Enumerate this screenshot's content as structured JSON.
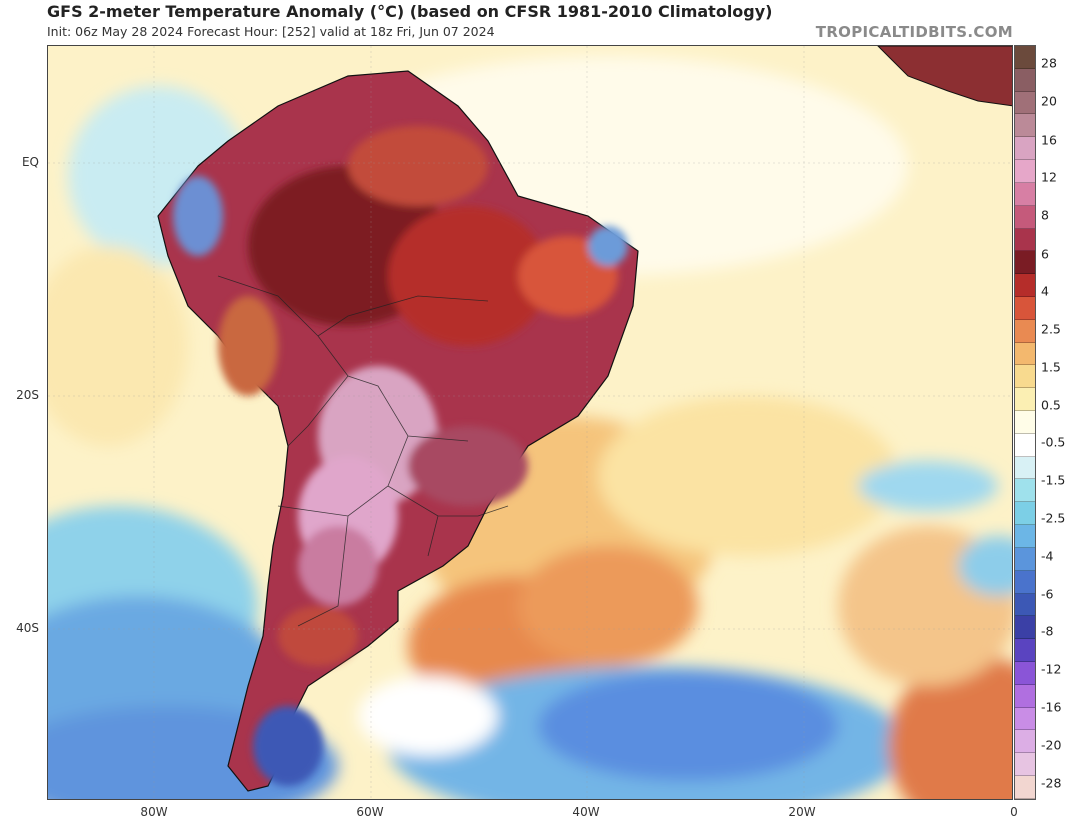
{
  "header": {
    "title": "GFS 2-meter Temperature Anomaly (°C) (based on CFSR 1981-2010 Climatology)",
    "subtitle": "Init: 06z May 28 2024   Forecast Hour: [252]   valid at 18z Fri, Jun 07 2024",
    "watermark": "TROPICALTIDBITS.COM"
  },
  "map": {
    "lat_labels": [
      "EQ",
      "20S",
      "40S"
    ],
    "lon_labels": [
      "80W",
      "60W",
      "40W",
      "20W",
      "0"
    ]
  },
  "colorbar": {
    "labels": [
      "28",
      "20",
      "16",
      "12",
      "8",
      "6",
      "4",
      "2.5",
      "1.5",
      "0.5",
      "-0.5",
      "-1.5",
      "-2.5",
      "-4",
      "-6",
      "-8",
      "-12",
      "-16",
      "-20",
      "-28"
    ],
    "colors": [
      "#6b4a3c",
      "#8a5e63",
      "#a07078",
      "#bb8a98",
      "#d9a4c2",
      "#e6a7c9",
      "#d77fa4",
      "#c55a7b",
      "#a9344c",
      "#7a1c24",
      "#b52d2a",
      "#d8553a",
      "#e98a52",
      "#f3b86e",
      "#f8da8f",
      "#fbefb3",
      "#fffde8",
      "#ffffff",
      "#d8f1f5",
      "#9fe1ec",
      "#7ccfe6",
      "#6cb6e6",
      "#5b95dc",
      "#4a73cc",
      "#3c58b5",
      "#3b40a6",
      "#5a44c0",
      "#8a55d7",
      "#b06fe0",
      "#c98de6",
      "#dcaee5",
      "#e7c4e2",
      "#f2d6d0"
    ]
  },
  "legend_scale_note": ""
}
